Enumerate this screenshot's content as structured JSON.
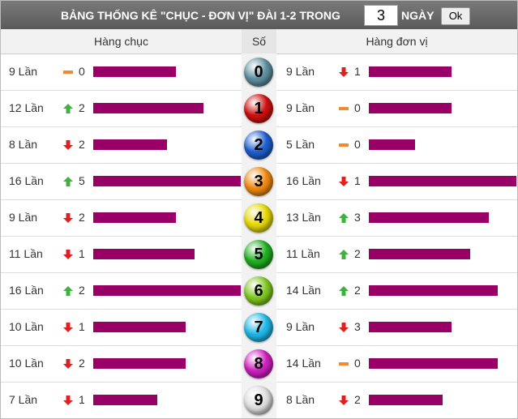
{
  "header": {
    "title": "BẢNG THỐNG KÊ \"CHỤC - ĐƠN VỊ\" ĐÀI 1-2 TRONG",
    "days": "3",
    "days_label": "NGÀY",
    "button": "Ok"
  },
  "columns": {
    "tens": "Hàng chục",
    "digit": "Số",
    "units": "Hàng đơn vị"
  },
  "rows": [
    {
      "digit": 0,
      "color": "#5f8fa0",
      "tens": {
        "label": "9 Lần",
        "count": 9,
        "trend": "same",
        "delta": 0
      },
      "units": {
        "label": "9 Lần",
        "count": 9,
        "trend": "down",
        "delta": 1
      }
    },
    {
      "digit": 1,
      "color": "#d01010",
      "tens": {
        "label": "12 Lần",
        "count": 12,
        "trend": "up",
        "delta": 2
      },
      "units": {
        "label": "9 Lần",
        "count": 9,
        "trend": "same",
        "delta": 0
      }
    },
    {
      "digit": 2,
      "color": "#1f5fd0",
      "tens": {
        "label": "8 Lần",
        "count": 8,
        "trend": "down",
        "delta": 2
      },
      "units": {
        "label": "5 Lần",
        "count": 5,
        "trend": "same",
        "delta": 0
      }
    },
    {
      "digit": 3,
      "color": "#f08a10",
      "tens": {
        "label": "16 Lần",
        "count": 16,
        "trend": "up",
        "delta": 5
      },
      "units": {
        "label": "16 Lần",
        "count": 16,
        "trend": "down",
        "delta": 1
      }
    },
    {
      "digit": 4,
      "color": "#e8d800",
      "tens": {
        "label": "9 Lần",
        "count": 9,
        "trend": "down",
        "delta": 2
      },
      "units": {
        "label": "13 Lần",
        "count": 13,
        "trend": "up",
        "delta": 3
      }
    },
    {
      "digit": 5,
      "color": "#20b020",
      "tens": {
        "label": "11 Lần",
        "count": 11,
        "trend": "down",
        "delta": 1
      },
      "units": {
        "label": "11 Lần",
        "count": 11,
        "trend": "up",
        "delta": 2
      }
    },
    {
      "digit": 6,
      "color": "#80c820",
      "tens": {
        "label": "16 Lần",
        "count": 16,
        "trend": "up",
        "delta": 2
      },
      "units": {
        "label": "14 Lần",
        "count": 14,
        "trend": "up",
        "delta": 2
      }
    },
    {
      "digit": 7,
      "color": "#20b8e8",
      "tens": {
        "label": "10 Lần",
        "count": 10,
        "trend": "down",
        "delta": 1
      },
      "units": {
        "label": "9 Lần",
        "count": 9,
        "trend": "down",
        "delta": 3
      }
    },
    {
      "digit": 8,
      "color": "#d020c0",
      "tens": {
        "label": "10 Lần",
        "count": 10,
        "trend": "down",
        "delta": 2
      },
      "units": {
        "label": "14 Lần",
        "count": 14,
        "trend": "same",
        "delta": 0
      }
    },
    {
      "digit": 9,
      "color": "#e0e0e0",
      "tens": {
        "label": "7 Lần",
        "count": 7,
        "trend": "down",
        "delta": 1
      },
      "units": {
        "label": "8 Lần",
        "count": 8,
        "trend": "down",
        "delta": 2
      }
    }
  ]
}
